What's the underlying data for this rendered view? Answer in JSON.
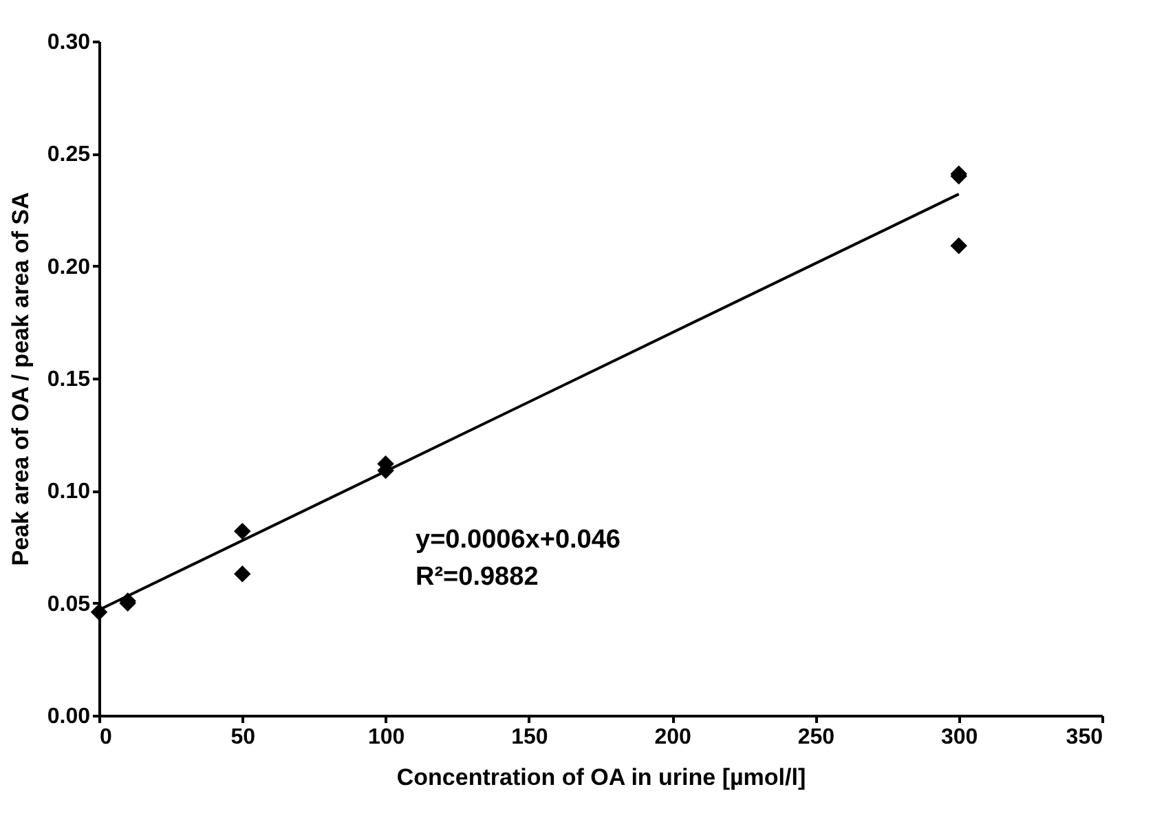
{
  "chart_data": {
    "type": "scatter",
    "xlabel": "Concentration of OA in urine [µmol/l]",
    "ylabel": "Peak area of OA / peak area of SA",
    "xlim": [
      0,
      350
    ],
    "xticks": [
      0,
      50,
      100,
      150,
      200,
      250,
      300,
      350
    ],
    "ylim": [
      0,
      0.3
    ],
    "yticks": [
      {
        "value": 0,
        "label": "0.00"
      },
      {
        "value": 0.05,
        "label": "0.05"
      },
      {
        "value": 0.1,
        "label": "0.10"
      },
      {
        "value": 0.15,
        "label": "0.15"
      },
      {
        "value": 0.2,
        "label": "0.20"
      },
      {
        "value": 0.25,
        "label": "0.25"
      },
      {
        "value": 0.3,
        "label": "0.30"
      }
    ],
    "grid": false,
    "series": [
      {
        "marker": "diamond",
        "color": "#000000",
        "x": [
          0,
          10,
          10,
          50,
          50,
          100,
          100,
          300,
          300,
          300
        ],
        "values": [
          0.046,
          0.05,
          0.051,
          0.082,
          0.063,
          0.112,
          0.109,
          0.241,
          0.24,
          0.209
        ]
      },
      {
        "type": "line",
        "line_style": "solid",
        "color": "#000000",
        "x": [
          0,
          300
        ],
        "values": [
          0.047,
          0.232
        ]
      }
    ],
    "annotations": [
      "y=0.0006x+0.046",
      "R²=0.9882"
    ]
  }
}
